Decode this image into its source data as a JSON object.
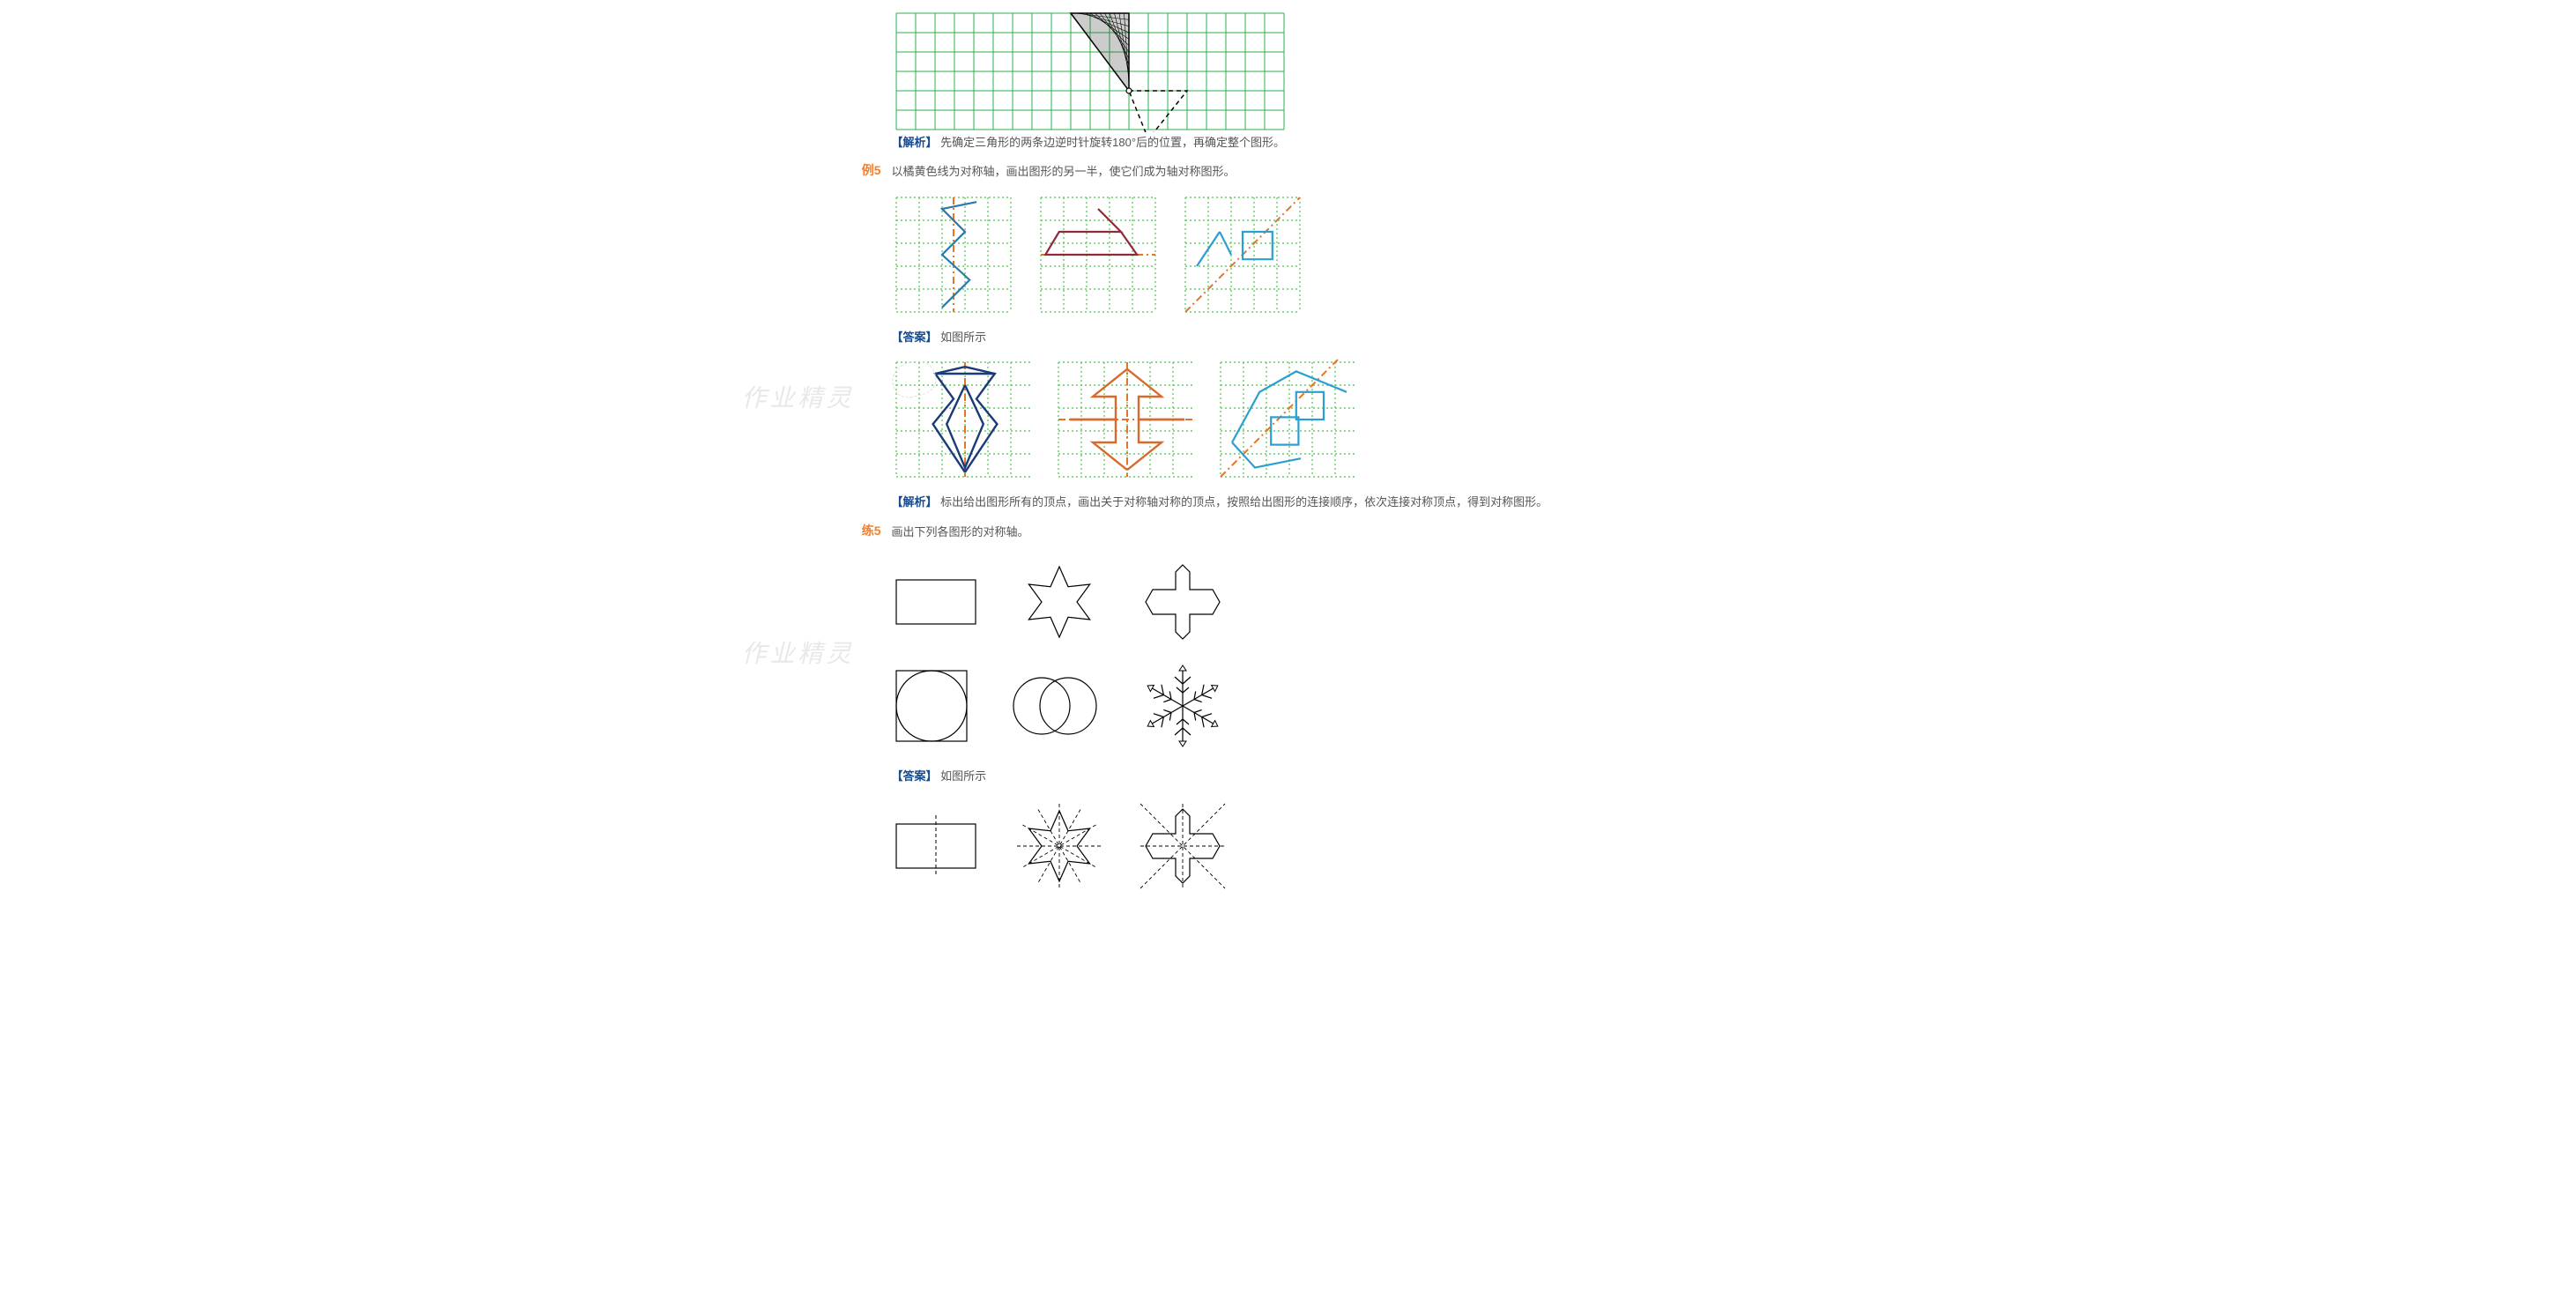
{
  "colors": {
    "grid_green": "#2bb24c",
    "grid_green_dotted": "#66cc66",
    "axis_orange": "#e67326",
    "shape_blue": "#2b7aa8",
    "shape_navy": "#1a3a7a",
    "shape_maroon": "#8c2b3b",
    "shape_orange": "#d96a2b",
    "shape_cyan": "#2aa0d0",
    "text_label": "#f08030",
    "text_tag": "#1a4b8c",
    "text_body": "#555555",
    "black": "#000000",
    "hatch": "#333333"
  },
  "watermarks": {
    "text": "作业精灵"
  },
  "section0": {
    "analysis_tag": "【解析】",
    "analysis_text": "先确定三角形的两条边逆时针旋转180°后的位置，再确定整个图形。",
    "grid": {
      "cols": 20,
      "rows": 6,
      "cell": 22,
      "triangle_solid": [
        [
          9,
          0
        ],
        [
          12,
          0
        ],
        [
          12,
          4
        ]
      ],
      "triangle_dashed": [
        [
          12,
          4
        ],
        [
          15,
          4
        ],
        [
          13,
          6.5
        ]
      ],
      "pivot": [
        12,
        4
      ]
    }
  },
  "example5": {
    "label": "例5",
    "prompt": "以橘黄色线为对称轴，画出图形的另一半，使它们成为轴对称图形。",
    "grids": {
      "cols": 5,
      "rows": 5,
      "cell": 26
    },
    "fig1": {
      "axis_type": "vertical_center",
      "shape": [
        [
          3.5,
          0.2
        ],
        [
          2,
          0.5
        ],
        [
          3,
          1.5
        ],
        [
          2,
          2.5
        ],
        [
          3.2,
          3.6
        ],
        [
          2,
          4.8
        ]
      ],
      "color": "shape_blue"
    },
    "fig2": {
      "axis_type": "horizontal_lower",
      "shape": [
        [
          2.5,
          0.5
        ],
        [
          3.5,
          1.5
        ],
        [
          0.8,
          1.5
        ],
        [
          0.2,
          2.5
        ],
        [
          4.2,
          2.5
        ],
        [
          3.5,
          1.5
        ]
      ],
      "color": "shape_maroon"
    },
    "fig3": {
      "axis_type": "diagonal",
      "shape_lines": [
        [
          [
            0.5,
            3
          ],
          [
            1.5,
            1.5
          ]
        ],
        [
          [
            1.5,
            1.5
          ],
          [
            2,
            2.5
          ]
        ]
      ],
      "square": [
        [
          2.5,
          1.5
        ],
        [
          3.8,
          1.5
        ],
        [
          3.8,
          2.7
        ],
        [
          2.5,
          2.7
        ]
      ],
      "color": "shape_cyan"
    },
    "answer_tag": "【答案】",
    "answer_text": "如图所示",
    "analysis_tag": "【解析】",
    "analysis_text": "标出给出图形所有的顶点，画出关于对称轴对称的顶点，按照给出图形的连接顺序，依次连接对称顶点，得到对称图形。",
    "answer_figs": {
      "cols": 6,
      "rows": 5,
      "cell": 26
    }
  },
  "practice5": {
    "label": "练5",
    "prompt": "画出下列各图形的对称轴。",
    "answer_tag": "【答案】",
    "answer_text": "如图所示",
    "shapes": [
      "rectangle",
      "hexagram",
      "cross-diamond",
      "petal-square",
      "two-circles",
      "snowflake"
    ]
  }
}
